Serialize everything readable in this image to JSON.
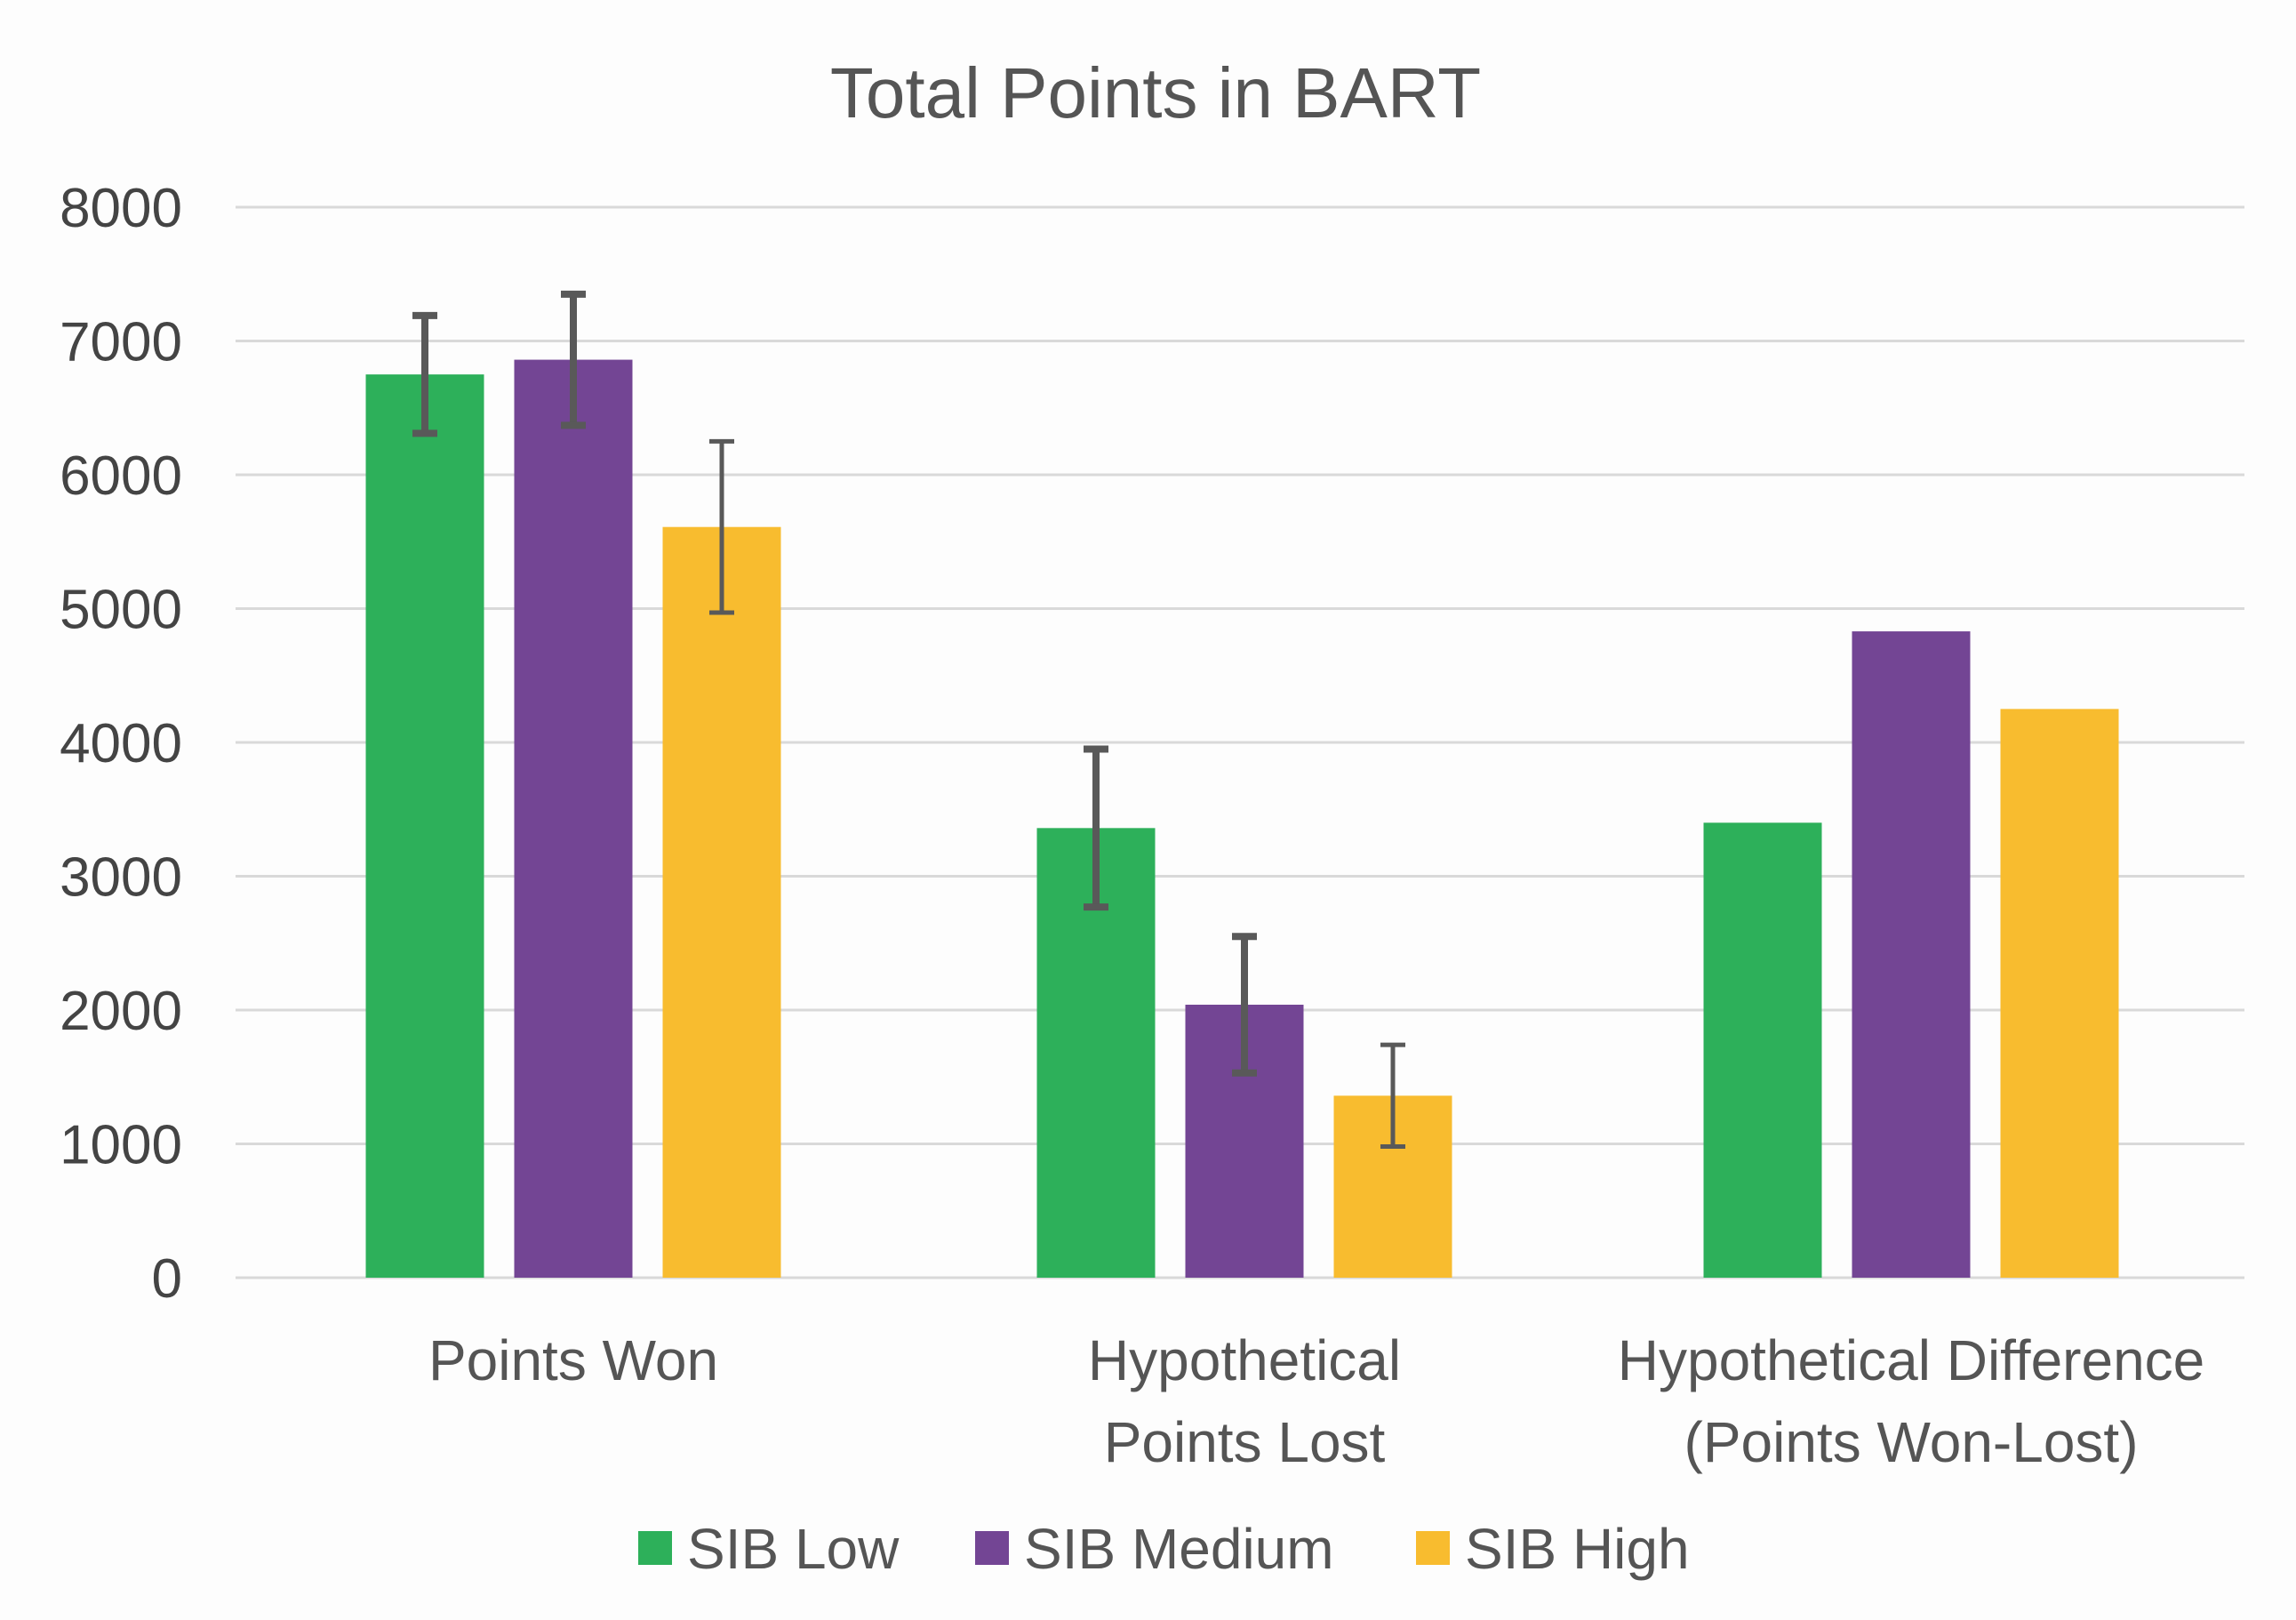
{
  "chart_data": {
    "type": "bar",
    "title": "Total Points in BART",
    "xlabel": "",
    "ylabel": "",
    "ylim": [
      0,
      8000
    ],
    "yticks": [
      0,
      1000,
      2000,
      3000,
      4000,
      5000,
      6000,
      7000,
      8000
    ],
    "grid": true,
    "legend_position": "bottom",
    "categories": [
      [
        "Points Won"
      ],
      [
        "Hypothetical",
        "Points Lost"
      ],
      [
        "Hypothetical Difference",
        "(Points Won-Lost)"
      ]
    ],
    "series": [
      {
        "name": "SIB Low",
        "color": "#2db05a",
        "values": [
          6750,
          3360,
          3400
        ],
        "errors": [
          440,
          590,
          null
        ]
      },
      {
        "name": "SIB Medium",
        "color": "#734594",
        "values": [
          6860,
          2040,
          4830
        ],
        "errors": [
          490,
          510,
          null
        ]
      },
      {
        "name": "SIB High",
        "color": "#f8bc2f",
        "values": [
          5610,
          1360,
          4250
        ],
        "errors": [
          640,
          380,
          null
        ]
      }
    ],
    "colors": {
      "grid": "#d9d9d9",
      "error_bar": "#595959"
    }
  }
}
